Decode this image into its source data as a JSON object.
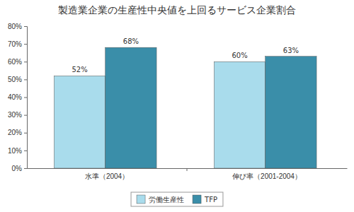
{
  "chart_data": {
    "type": "bar",
    "title": "製造業企業の生産性中央値を上回るサービス企業割合",
    "categories": [
      "水準（2004）",
      "伸び率（2001-2004）"
    ],
    "series": [
      {
        "name": "労働生産性",
        "color": "#a9dcec",
        "values": [
          52,
          60
        ],
        "value_labels": [
          "52%",
          "60%"
        ]
      },
      {
        "name": "TFP",
        "color": "#3a8ea9",
        "values": [
          68,
          63
        ],
        "value_labels": [
          "68%",
          "63%"
        ]
      }
    ],
    "ylim": [
      0,
      80
    ],
    "yticks": [
      {
        "value": 0,
        "label": "0%"
      },
      {
        "value": 10,
        "label": "10%"
      },
      {
        "value": 20,
        "label": "20%"
      },
      {
        "value": 30,
        "label": "30%"
      },
      {
        "value": 40,
        "label": "40%"
      },
      {
        "value": 50,
        "label": "50%"
      },
      {
        "value": 60,
        "label": "60%"
      },
      {
        "value": 70,
        "label": "70%"
      },
      {
        "value": 80,
        "label": "80%"
      }
    ],
    "grid": false,
    "data_labels": true,
    "legend": "bottom"
  }
}
